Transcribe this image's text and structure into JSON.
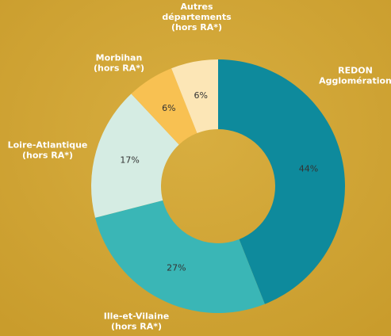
{
  "chart_data": {
    "type": "donut",
    "categories": [
      [
        "REDON",
        "Agglomération"
      ],
      [
        "Ille-et-Vilaine",
        "(hors RA*)"
      ],
      [
        "Loire-Atlantique",
        "(hors RA*)"
      ],
      [
        "Morbihan",
        "(hors RA*)"
      ],
      [
        "Autres",
        "départements",
        "(hors RA*)"
      ]
    ],
    "values": [
      44,
      27,
      17,
      6,
      6
    ],
    "value_labels": [
      "44%",
      "27%",
      "17%",
      "6%",
      "6%"
    ],
    "colors": [
      "#0e8a9c",
      "#3ab6b6",
      "#d5ece3",
      "#f8c152",
      "#fce6b6"
    ]
  }
}
